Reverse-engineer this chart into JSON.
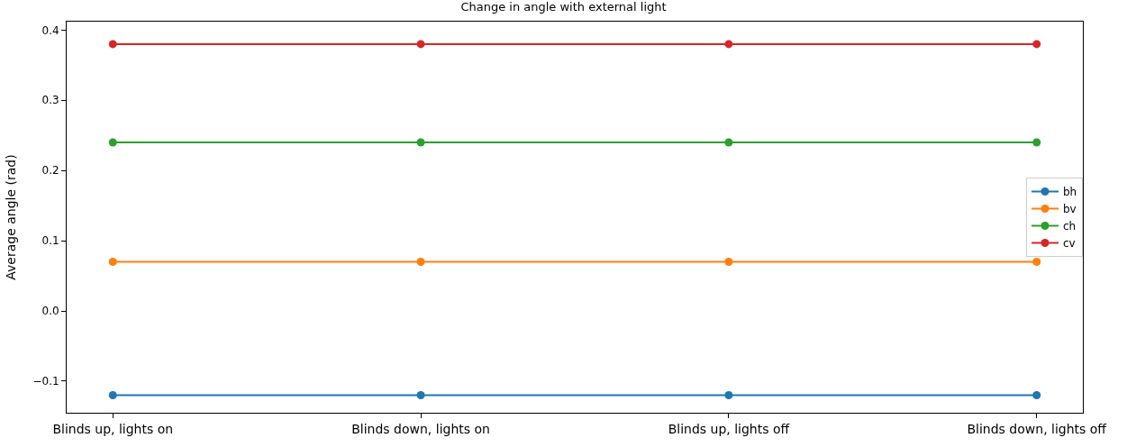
{
  "chart_data": {
    "type": "line",
    "title": "Change in angle with external light",
    "ylabel": "Average angle (rad)",
    "categories": [
      "Blinds up, lights on",
      "Blinds down, lights on",
      "Blinds up, lights off",
      "Blinds down, lights off"
    ],
    "series": [
      {
        "name": "bh",
        "color": "#1f77b4",
        "values": [
          -0.12,
          -0.12,
          -0.12,
          -0.12
        ]
      },
      {
        "name": "bv",
        "color": "#ff7f0e",
        "values": [
          0.07,
          0.07,
          0.07,
          0.07
        ]
      },
      {
        "name": "ch",
        "color": "#2ca02c",
        "values": [
          0.24,
          0.24,
          0.24,
          0.24
        ]
      },
      {
        "name": "cv",
        "color": "#d62728",
        "values": [
          0.38,
          0.38,
          0.38,
          0.38
        ]
      }
    ],
    "ylim": [
      -0.145,
      0.412
    ],
    "yticks": [
      {
        "value": -0.1,
        "label": "−0.1"
      },
      {
        "value": 0,
        "label": "0.0"
      },
      {
        "value": 0.1,
        "label": "0.1"
      },
      {
        "value": 0.2,
        "label": "0.2"
      },
      {
        "value": 0.3,
        "label": "0.3"
      },
      {
        "value": 0.4,
        "label": "0.4"
      }
    ],
    "marker": "circle",
    "line_style": "solid",
    "legend": "right"
  }
}
